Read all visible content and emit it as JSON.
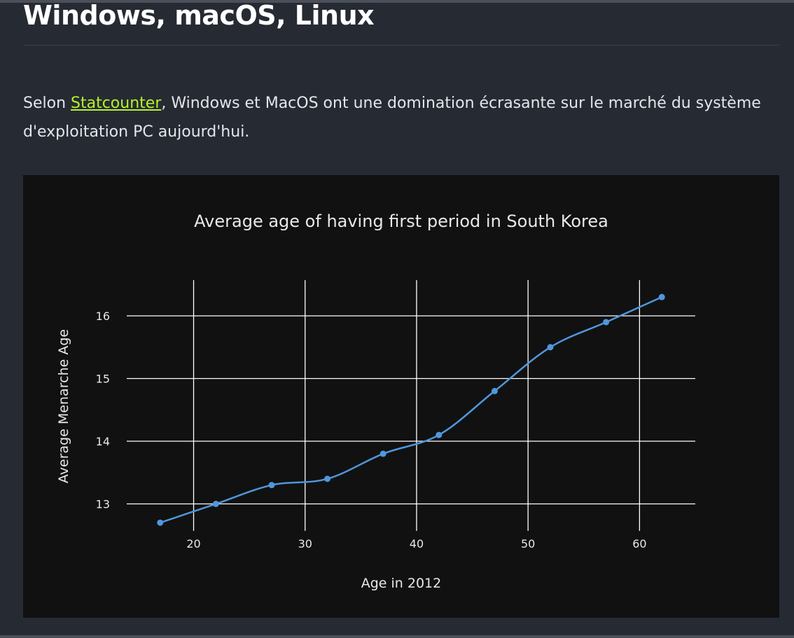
{
  "heading": "Windows, macOS, Linux",
  "paragraph": {
    "before": "Selon ",
    "link": "Statcounter",
    "after": ", Windows et MacOS ont une domination écrasante sur le marché du système d'exploitation PC aujourd'hui."
  },
  "colors": {
    "page_background": "#262a33",
    "chart_background": "#111111",
    "link": "#b6f22a",
    "series_line": "#4f97dd",
    "gridline": "#ffffff"
  },
  "chart_data": {
    "type": "line",
    "title": "Average age of having first period in South Korea",
    "xlabel": "Age in 2012",
    "ylabel": "Average Menarche Age",
    "xlim": [
      14,
      65
    ],
    "ylim": [
      12.57,
      16.57
    ],
    "xticks": [
      20,
      30,
      40,
      50,
      60
    ],
    "yticks": [
      13,
      14,
      15,
      16
    ],
    "grid": true,
    "legend": "none",
    "line_shape": "spline",
    "series": [
      {
        "x": [
          17,
          22,
          27,
          32,
          37,
          42,
          47,
          52,
          57,
          62
        ],
        "values": [
          12.7,
          13.0,
          13.3,
          13.4,
          13.8,
          14.1,
          14.8,
          15.5,
          15.9,
          16.3
        ]
      }
    ]
  }
}
